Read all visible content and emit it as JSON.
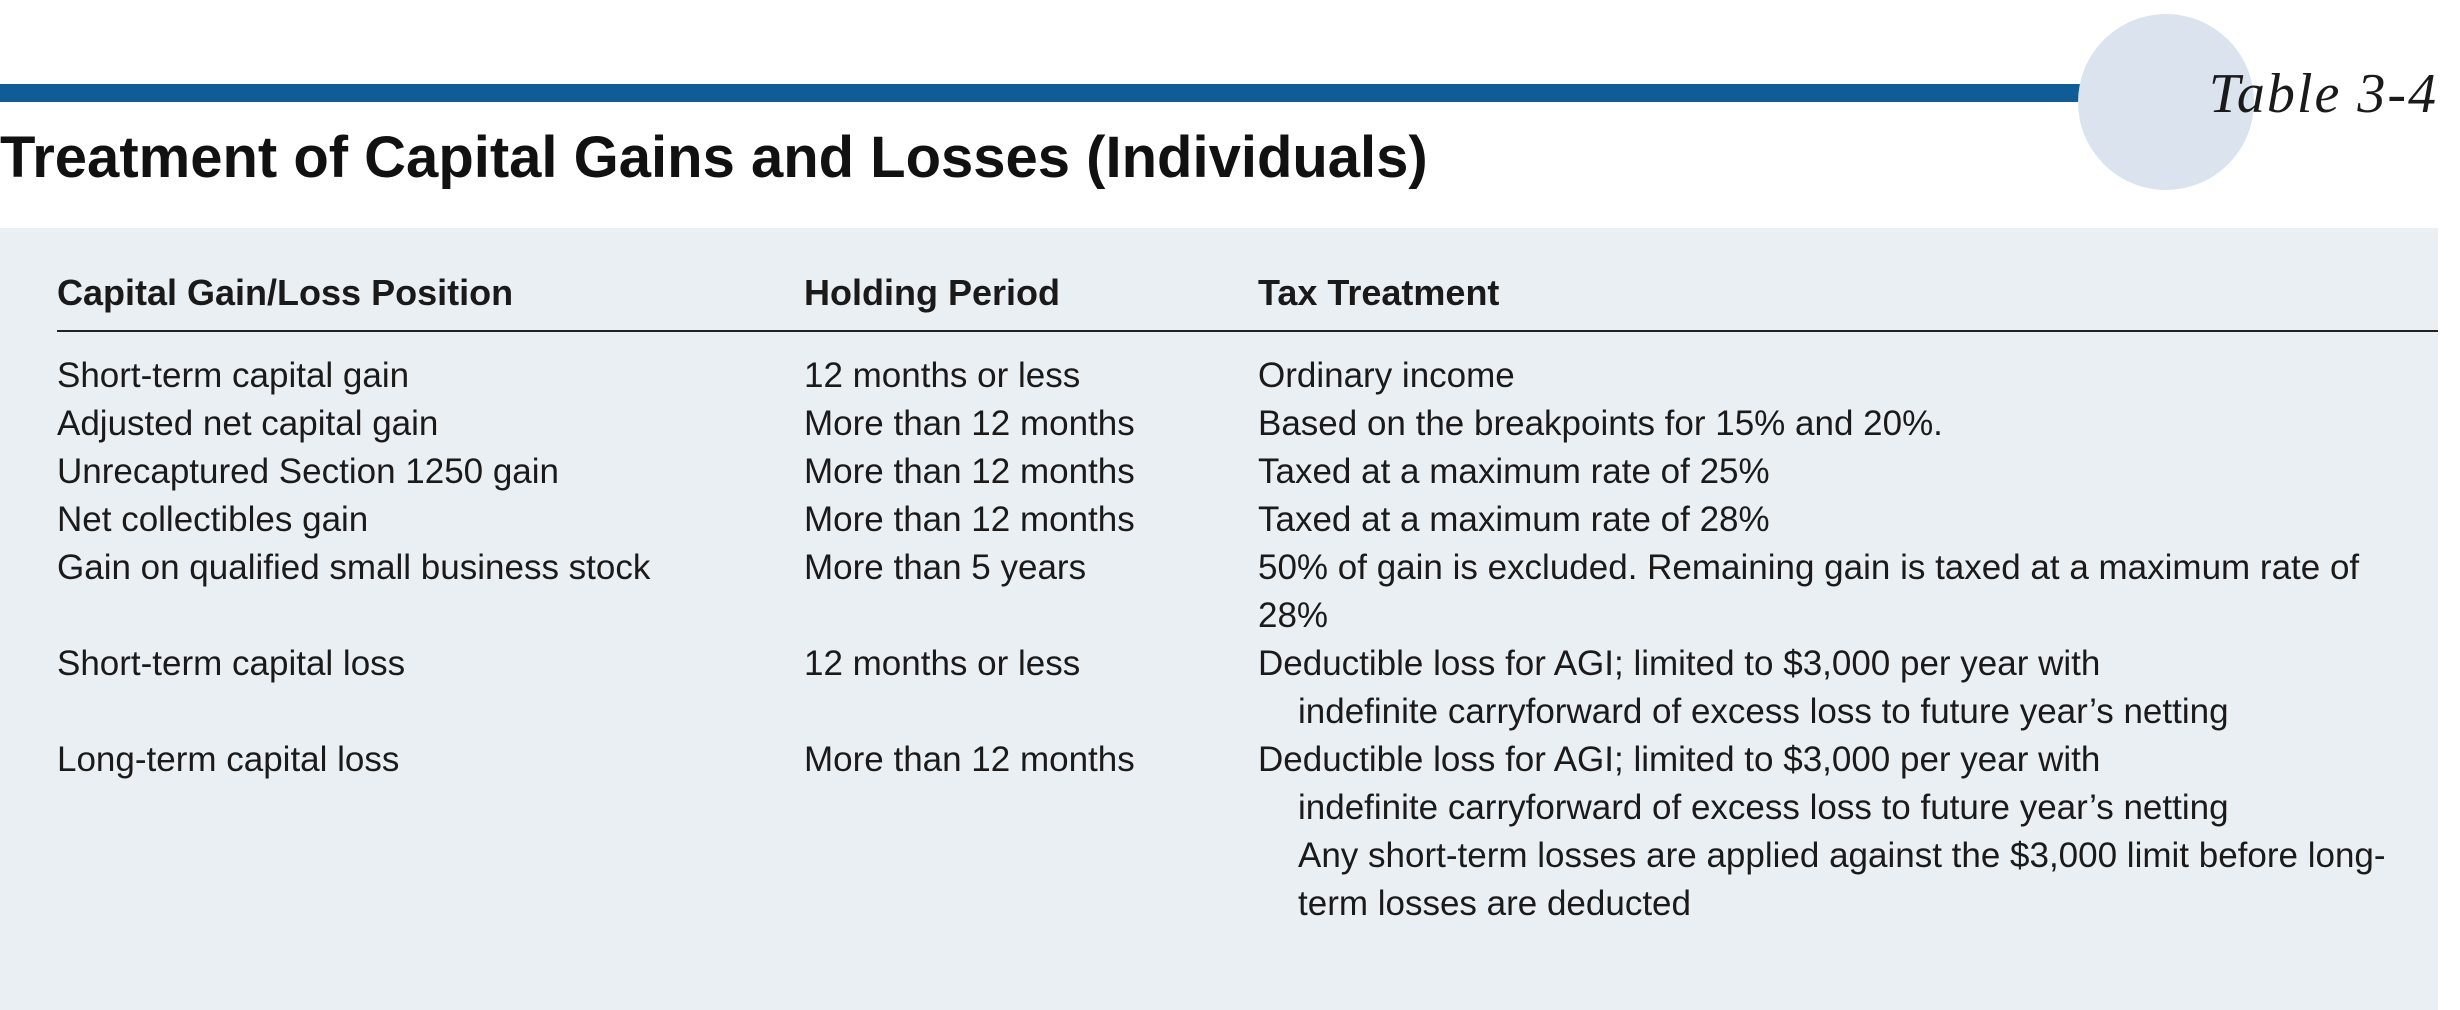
{
  "header": {
    "label": "Table 3-4",
    "title": "Treatment of Capital Gains and Losses (Individuals)"
  },
  "table": {
    "columns": [
      "Capital Gain/Loss Position",
      "Holding Period",
      "Tax Treatment"
    ],
    "rows": [
      [
        "Short-term capital gain",
        "12 months or less",
        [
          "Ordinary income"
        ]
      ],
      [
        "Adjusted net capital gain",
        "More than 12 months",
        [
          "Based on the breakpoints for 15% and 20%."
        ]
      ],
      [
        "Unrecaptured Section 1250 gain",
        "More than 12 months",
        [
          "Taxed at a maximum rate of 25%"
        ]
      ],
      [
        "Net collectibles gain",
        "More than 12 months",
        [
          "Taxed at a maximum rate of 28%"
        ]
      ],
      [
        "Gain on qualified small business stock",
        "More than 5 years",
        [
          "50% of gain is excluded. Remaining gain is taxed at a maximum rate of 28%"
        ]
      ],
      [
        "Short-term capital loss",
        "12 months or less",
        [
          "Deductible loss for AGI; limited to $3,000 per year with",
          "indefinite carryforward of excess loss to future year’s netting"
        ]
      ],
      [
        "Long-term capital loss",
        "More than 12 months",
        [
          "Deductible loss for AGI; limited to $3,000 per year with",
          "indefinite carryforward of excess loss to future year’s netting",
          "Any short-term losses are applied against the $3,000 limit before long-term losses are deducted"
        ]
      ]
    ]
  }
}
